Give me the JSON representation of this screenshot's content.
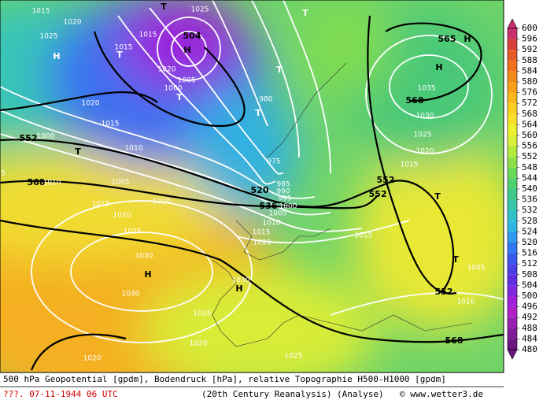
{
  "map_labels": [
    "1015",
    "1020",
    "1025",
    "H",
    "T",
    "1025",
    "T",
    "1015",
    "504",
    "H",
    "1015",
    "T",
    "1020",
    "T",
    "1005",
    "1000",
    "T",
    "1020",
    "980",
    "T",
    "1015",
    "1010",
    "552",
    "1000",
    "T",
    "975",
    "568",
    "1010",
    "1005",
    "520",
    "985",
    "990",
    "995",
    "536",
    "1000",
    "1005",
    "1010",
    "1015",
    "1020",
    "1010",
    "1015",
    "1020",
    "1025",
    "1030",
    "H",
    "1030",
    "1030",
    "H",
    "1025",
    "1020",
    "1020",
    "1025",
    "1015",
    "552",
    "552",
    "T",
    "T",
    "1005",
    "552",
    "1010",
    "568",
    "565",
    "H",
    "H",
    "1035",
    "568",
    "1030",
    "1025",
    "1020",
    "1015",
    "5"
  ],
  "colorbar": {
    "ticks": [
      600,
      596,
      592,
      588,
      584,
      580,
      576,
      572,
      568,
      564,
      560,
      556,
      552,
      548,
      544,
      540,
      536,
      532,
      528,
      524,
      520,
      516,
      512,
      508,
      504,
      500,
      496,
      492,
      488,
      484,
      480
    ],
    "colors": [
      "#c8306e",
      "#d8403c",
      "#e85a28",
      "#f07020",
      "#f48a1c",
      "#f8a018",
      "#fbb818",
      "#fcd020",
      "#f8e028",
      "#eef030",
      "#d8f038",
      "#b4ea3c",
      "#8ee048",
      "#6cd85a",
      "#50d070",
      "#40c88a",
      "#38c4a8",
      "#30c0c8",
      "#30b4e0",
      "#3098ee",
      "#3278f0",
      "#3a58ec",
      "#4a40e4",
      "#6030e0",
      "#8028e0",
      "#a020dc",
      "#b020c8",
      "#9820b0",
      "#801c98",
      "#6a1880"
    ]
  },
  "footer": {
    "line1": "500 hPa Geopotential [gpdm], Bodendruck [hPa], relative Topographie H500-H1000 [gpdm]",
    "date": "???. 07-11-1944  06 UTC",
    "source": "(20th Century Reanalysis)",
    "mode": "(Analyse)",
    "credit": "© www.wetter3.de"
  }
}
